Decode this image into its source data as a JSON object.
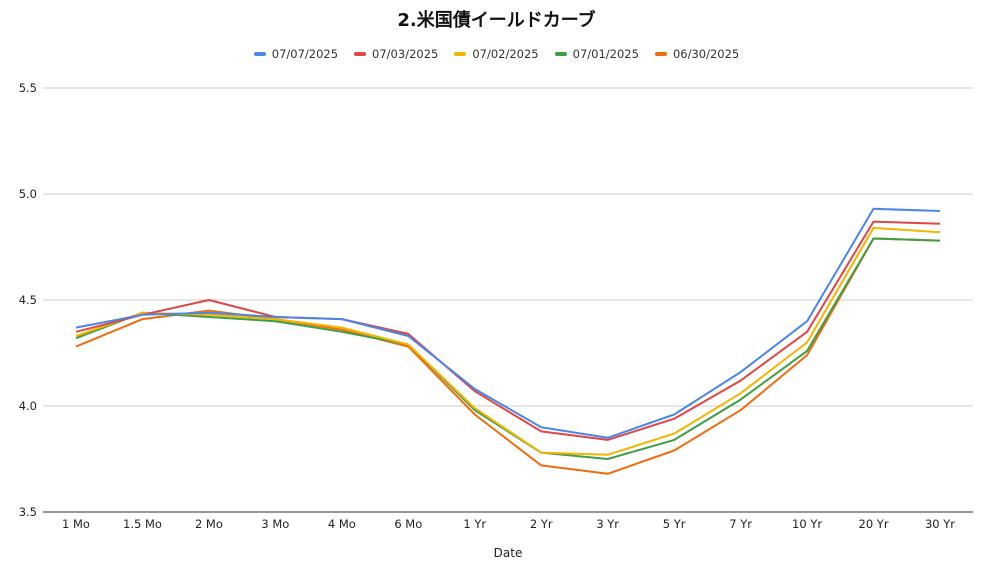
{
  "chart_data": {
    "type": "line",
    "title": "2.米国債イールドカーブ",
    "xlabel": "Date",
    "ylabel": "",
    "ylim": [
      3.5,
      5.5
    ],
    "yticks": [
      "3.5",
      "4.0",
      "4.5",
      "5.0",
      "5.5"
    ],
    "grid": true,
    "legend_position": "top",
    "categories": [
      "1 Mo",
      "1.5 Mo",
      "2 Mo",
      "3 Mo",
      "4 Mo",
      "6 Mo",
      "1 Yr",
      "2 Yr",
      "3 Yr",
      "5 Yr",
      "7 Yr",
      "10 Yr",
      "20 Yr",
      "30 Yr"
    ],
    "series": [
      {
        "name": "07/07/2025",
        "color": "#4a86e8",
        "values": [
          4.37,
          4.43,
          4.44,
          4.42,
          4.41,
          4.33,
          4.08,
          3.9,
          3.85,
          3.96,
          4.16,
          4.4,
          4.93,
          4.92
        ]
      },
      {
        "name": "07/03/2025",
        "color": "#e04646",
        "values": [
          4.35,
          4.43,
          4.5,
          4.42,
          4.41,
          4.34,
          4.07,
          3.88,
          3.84,
          3.94,
          4.12,
          4.35,
          4.87,
          4.86
        ]
      },
      {
        "name": "07/02/2025",
        "color": "#f4b400",
        "values": [
          4.33,
          4.44,
          4.43,
          4.41,
          4.37,
          4.29,
          3.99,
          3.78,
          3.77,
          3.87,
          4.06,
          4.3,
          4.84,
          4.82
        ]
      },
      {
        "name": "07/01/2025",
        "color": "#3e9e45",
        "values": [
          4.32,
          4.44,
          4.42,
          4.4,
          4.35,
          4.29,
          3.98,
          3.78,
          3.75,
          3.84,
          4.03,
          4.26,
          4.79,
          4.78
        ]
      },
      {
        "name": "06/30/2025",
        "color": "#f26b0f",
        "values": [
          4.28,
          4.41,
          4.45,
          4.41,
          4.36,
          4.28,
          3.96,
          3.72,
          3.68,
          3.79,
          3.98,
          4.24,
          4.79,
          4.78
        ]
      }
    ]
  }
}
